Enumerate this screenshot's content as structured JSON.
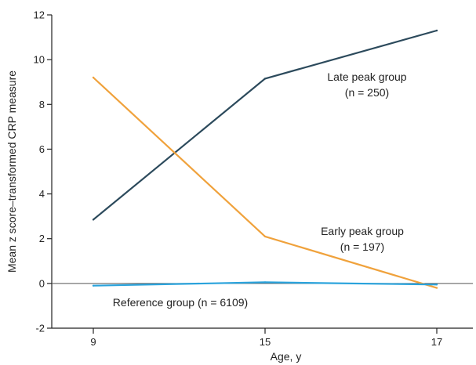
{
  "chart_data": {
    "type": "line",
    "title": "",
    "xlabel": "Age, y",
    "ylabel": "Mean z score–transformed CRP measure",
    "x": [
      9,
      15,
      17
    ],
    "x_tick_labels": [
      "9",
      "15",
      "17"
    ],
    "ylim": [
      -2,
      12
    ],
    "y_ticks": [
      -2,
      0,
      2,
      4,
      6,
      8,
      10,
      12
    ],
    "y_tick_labels": [
      "-2",
      "0",
      "2",
      "4",
      "6",
      "8",
      "10",
      "12"
    ],
    "zero_line": true,
    "grid": false,
    "legend": "none",
    "series": [
      {
        "key": "late",
        "label_lines": [
          "Late peak group",
          "(n = 250)"
        ],
        "color": "#2c4a5c",
        "values": [
          2.85,
          9.15,
          11.3
        ]
      },
      {
        "key": "early",
        "label_lines": [
          "Early peak group",
          "(n = 197)"
        ],
        "color": "#f0a23c",
        "values": [
          9.2,
          2.1,
          -0.2
        ]
      },
      {
        "key": "reference",
        "label_lines": [
          "Reference group (n = 6109)"
        ],
        "color": "#2aa3dc",
        "values": [
          -0.1,
          0.05,
          -0.05
        ]
      }
    ]
  }
}
